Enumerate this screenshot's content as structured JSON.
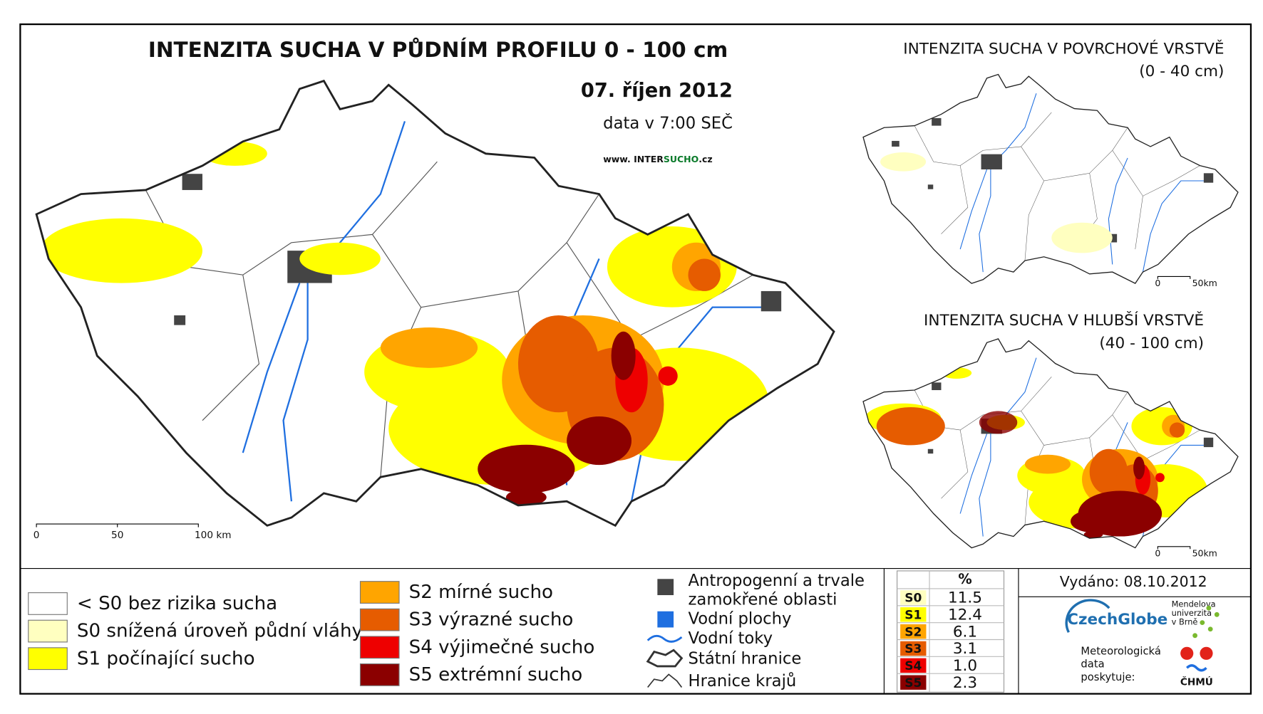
{
  "map": {
    "title": "INTENZITA SUCHA V PŮDNÍM PROFILU 0 - 100 cm",
    "date": "07. říjen 2012",
    "data_time": "data v 7:00 SEČ",
    "website": {
      "prefix": "www. INTER",
      "highlight": "SUCHO",
      "suffix": ".cz"
    },
    "scale": [
      "0",
      "50",
      "100 km"
    ]
  },
  "inset_top": {
    "title": "INTENZITA SUCHA V POVRCHOVÉ VRSTVĚ",
    "depth": "(0 - 40 cm)",
    "scale": [
      "0",
      "50km"
    ]
  },
  "inset_bottom": {
    "title": "INTENZITA SUCHA V HLUBŠÍ VRSTVĚ",
    "depth": "(40 - 100 cm)",
    "scale": [
      "0",
      "50km"
    ]
  },
  "legend": {
    "classes": [
      {
        "label": "< S0 bez rizika sucha",
        "color": "#ffffff"
      },
      {
        "label": "S0 snížená úroveň půdní vláhy",
        "color": "#ffffc0"
      },
      {
        "label": "S1 počínající sucho",
        "color": "#ffff00"
      },
      {
        "label": "S2 mírné sucho",
        "color": "#ffa500"
      },
      {
        "label": "S3 výrazné sucho",
        "color": "#e65c00"
      },
      {
        "label": "S4 výjimečné sucho",
        "color": "#ee0000"
      },
      {
        "label": "S5 extrémní sucho",
        "color": "#8b0000"
      }
    ],
    "other": [
      {
        "label": [
          "Antropogenní a trvale",
          "zamokřené oblasti"
        ]
      },
      {
        "label": [
          "Vodní plochy"
        ]
      },
      {
        "label": [
          "Vodní toky"
        ]
      },
      {
        "label": [
          "Státní hranice"
        ]
      },
      {
        "label": [
          "Hranice krajů"
        ]
      }
    ]
  },
  "stats_table": {
    "header": "%",
    "rows": [
      {
        "class": "S0",
        "percent": "11.5",
        "color": "#ffffc0"
      },
      {
        "class": "S1",
        "percent": "12.4",
        "color": "#ffff00"
      },
      {
        "class": "S2",
        "percent": "6.1",
        "color": "#ffa500"
      },
      {
        "class": "S3",
        "percent": "3.1",
        "color": "#e65c00"
      },
      {
        "class": "S4",
        "percent": "1.0",
        "color": "#ee0000"
      },
      {
        "class": "S5",
        "percent": "2.3",
        "color": "#8b0000"
      }
    ]
  },
  "footer": {
    "issued": "Vydáno: 08.10.2012",
    "czechglobe": "CzechGlobe",
    "mendel": [
      "Mendelova",
      "univerzita",
      "v Brně"
    ],
    "provider": [
      "Meteorologická",
      "data",
      "poskytuje:"
    ],
    "chmu": "ČHMÚ"
  }
}
